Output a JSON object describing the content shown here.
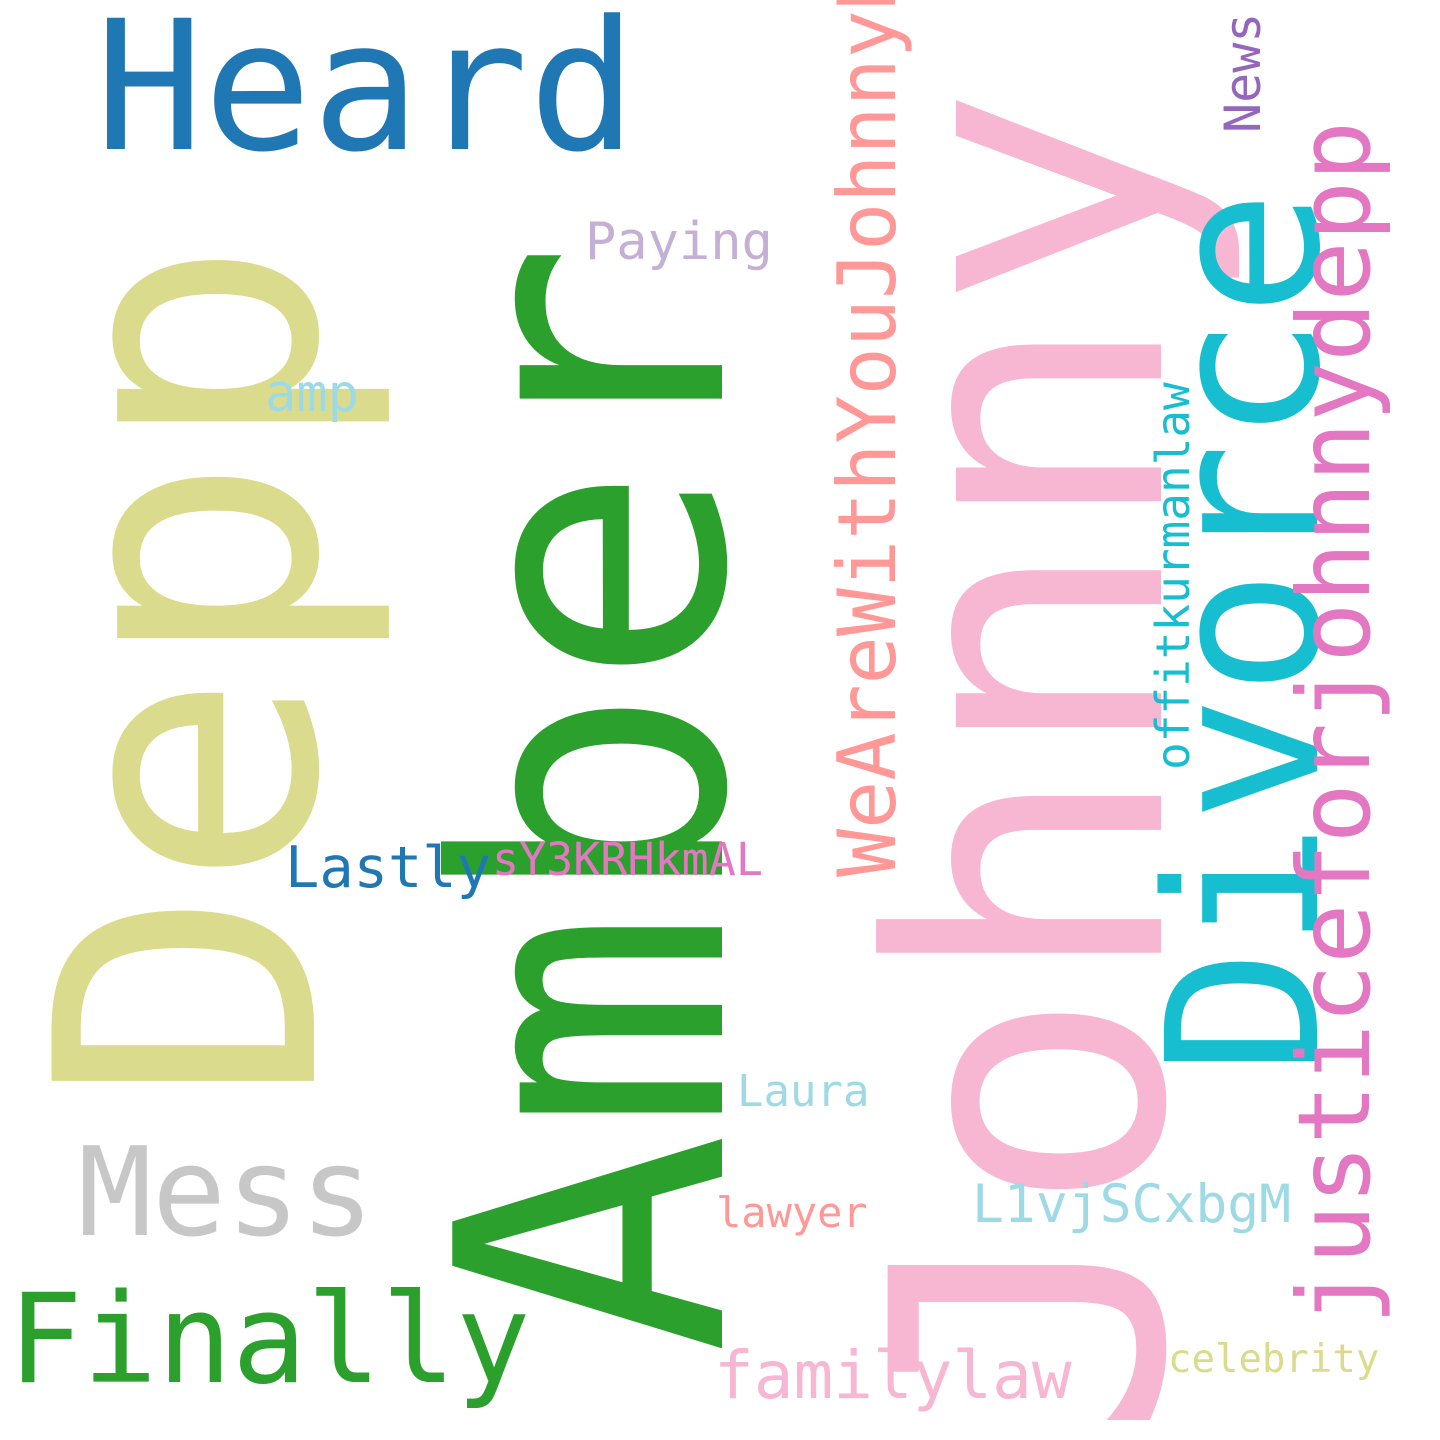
{
  "words": {
    "johnny": {
      "text": "Johnny",
      "color": "#f7b6d2"
    },
    "amber": {
      "text": "Amber",
      "color": "#2ca02c"
    },
    "depp": {
      "text": "Depp",
      "color": "#dbdb8d"
    },
    "heard": {
      "text": "Heard",
      "color": "#1f77b4"
    },
    "divorce": {
      "text": "Divorce",
      "color": "#17becf"
    },
    "justice": {
      "text": "justiceforjohnnydepp",
      "color": "#e377c2"
    },
    "weare": {
      "text": "WeAreWithYouJohnnyDepp",
      "color": "#ff9896"
    },
    "finally": {
      "text": "Finally",
      "color": "#2ca02c"
    },
    "mess": {
      "text": "Mess",
      "color": "#c7c7c7"
    },
    "familylaw": {
      "text": "familylaw",
      "color": "#f7b6d2"
    },
    "paying": {
      "text": "Paying",
      "color": "#c5b0d5"
    },
    "lastly": {
      "text": "Lastly",
      "color": "#1f77b4"
    },
    "sy3k": {
      "text": "sY3KRHkmAL",
      "color": "#e377c2"
    },
    "amp": {
      "text": "amp",
      "color": "#9edae5"
    },
    "offit": {
      "text": "offitkurmanlaw",
      "color": "#17becf"
    },
    "news": {
      "text": "News",
      "color": "#9467bd"
    },
    "l1vj": {
      "text": "L1vjSCxbgM",
      "color": "#9edae5"
    },
    "laura": {
      "text": "Laura",
      "color": "#9edae5"
    },
    "lawyer": {
      "text": "lawyer",
      "color": "#ff9896"
    },
    "celebrity": {
      "text": "celebrity",
      "color": "#dbdb8d"
    }
  }
}
